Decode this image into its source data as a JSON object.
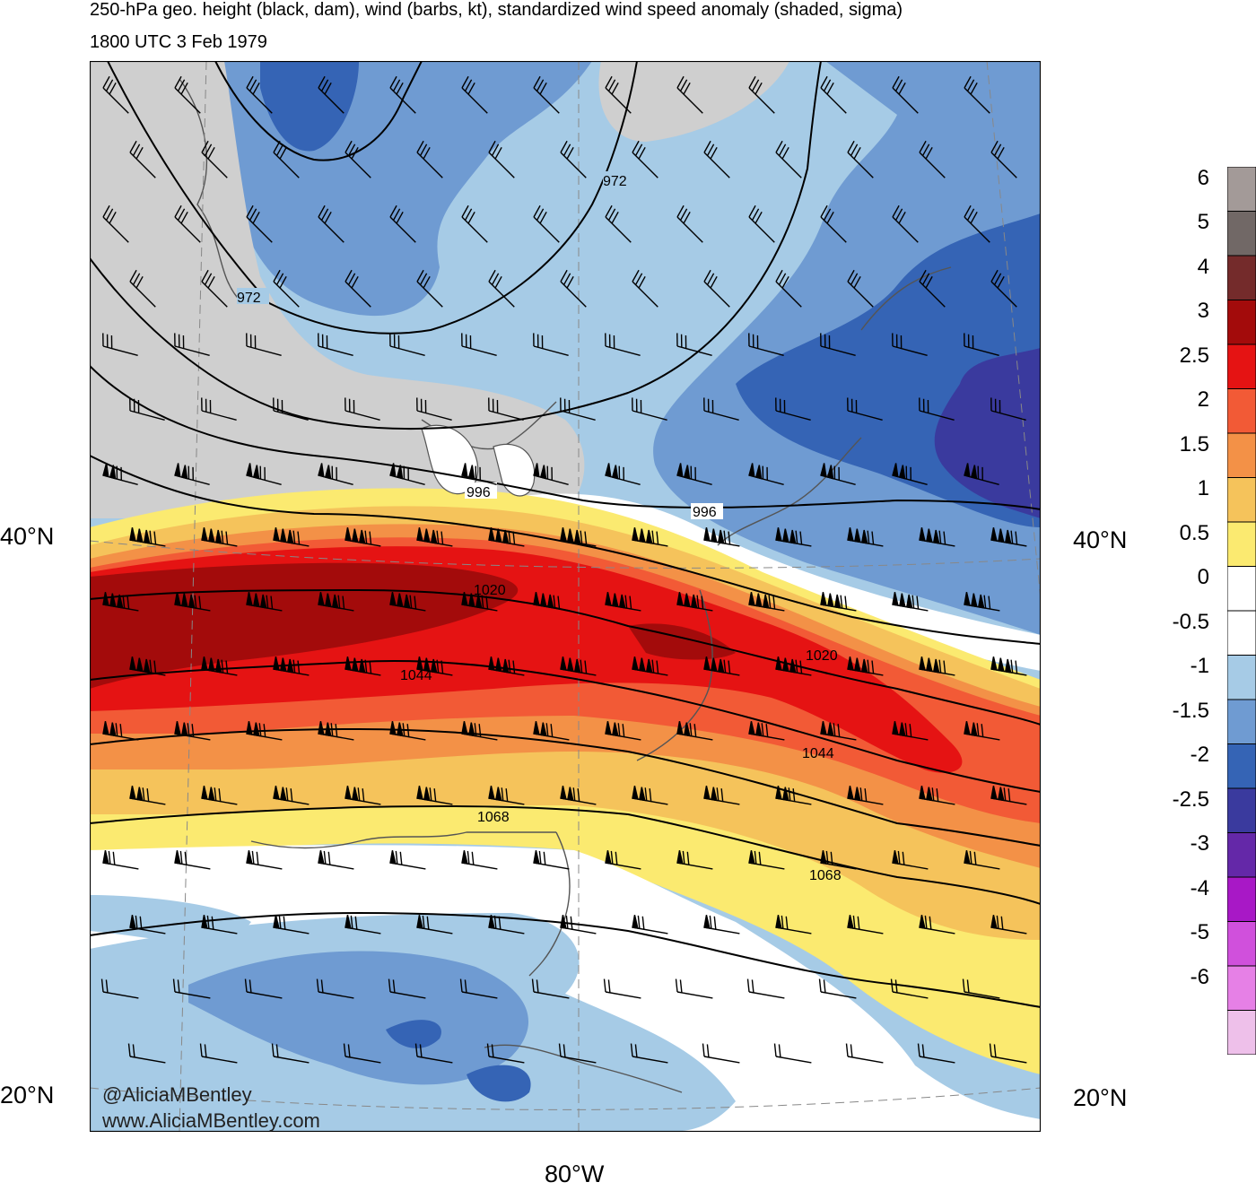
{
  "header": {
    "title_line1": "250-hPa geo. height (black, dam), wind (barbs, kt), standardized wind speed anomaly (shaded, sigma)",
    "title_line2": "1800 UTC 3 Feb 1979"
  },
  "axes": {
    "lat_labels": [
      "40°N",
      "20°N"
    ],
    "lon_label": "80°W"
  },
  "contour_labels": [
    "972",
    "972",
    "996",
    "996",
    "1020",
    "1020",
    "1044",
    "1044",
    "1068",
    "1068"
  ],
  "colorbar": {
    "labels": [
      "6",
      "5",
      "4",
      "3",
      "2.5",
      "2",
      "1.5",
      "1",
      "0.5",
      "0",
      "-0.5",
      "-1",
      "-1.5",
      "-2",
      "-2.5",
      "-3",
      "-4",
      "-5",
      "-6"
    ],
    "colors": [
      "#a39a98",
      "#716866",
      "#742b2b",
      "#a30b0b",
      "#e51313",
      "#f25a36",
      "#f39147",
      "#f5c35b",
      "#fbea70",
      "#ffffff",
      "#ffffff",
      "#a6cbe6",
      "#6f9bd2",
      "#3564b5",
      "#3a3a9e",
      "#6428a8",
      "#a818c6",
      "#d050dc",
      "#e680e6",
      "#eec0ea"
    ]
  },
  "credits": {
    "handle": "@AliciaMBentley",
    "site": "www.AliciaMBentley.com"
  }
}
